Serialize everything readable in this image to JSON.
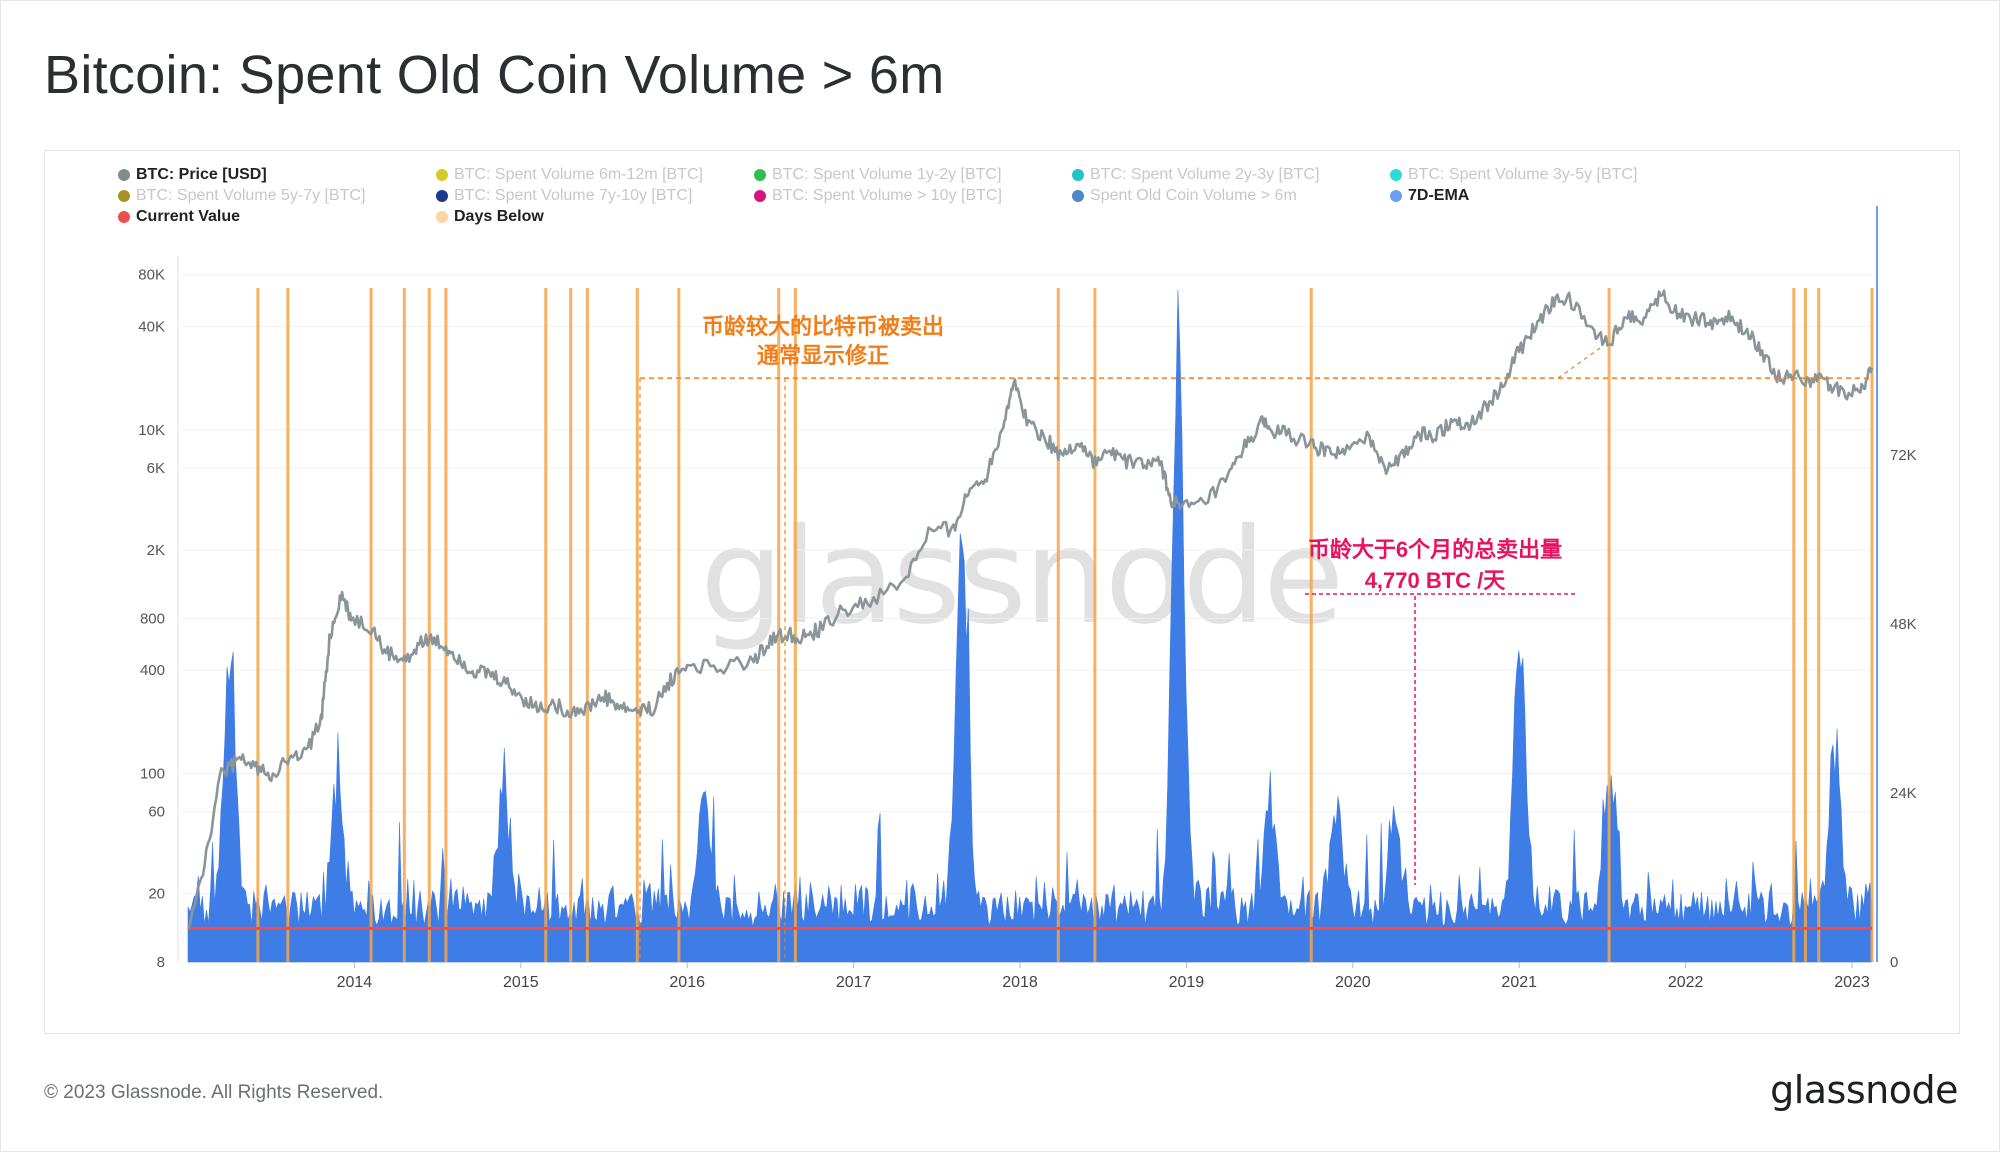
{
  "title": "Bitcoin: Spent Old Coin Volume > 6m",
  "footer": "© 2023 Glassnode. All Rights Reserved.",
  "brand": "glassnode",
  "watermark": "glassnode",
  "legend": [
    {
      "label": "BTC: Price [USD]",
      "color": "#7f8c8d",
      "active": true
    },
    {
      "label": "BTC: Spent Volume 6m-12m [BTC]",
      "color": "#d4cb2a",
      "active": false
    },
    {
      "label": "BTC: Spent Volume 1y-2y [BTC]",
      "color": "#2fbf4a",
      "active": false
    },
    {
      "label": "BTC: Spent Volume 2y-3y [BTC]",
      "color": "#22c2c9",
      "active": false
    },
    {
      "label": "BTC: Spent Volume 3y-5y [BTC]",
      "color": "#2dd9d9",
      "active": false
    },
    {
      "label": "BTC: Spent Volume 5y-7y [BTC]",
      "color": "#a89226",
      "active": false
    },
    {
      "label": "BTC: Spent Volume 7y-10y [BTC]",
      "color": "#1a3a8f",
      "active": false
    },
    {
      "label": "BTC: Spent Volume > 10y [BTC]",
      "color": "#d4157a",
      "active": false
    },
    {
      "label": "Spent Old Coin Volume > 6m",
      "color": "#4f86c6",
      "active": false
    },
    {
      "label": "7D-EMA",
      "color": "#6d9cf0",
      "active": true
    },
    {
      "label": "Current Value",
      "color": "#f04d4d",
      "active": true
    },
    {
      "label": "Days Below",
      "color": "#ffd3a6",
      "active": true
    }
  ],
  "annotations": {
    "orange_line1": "币龄较大的比特币被卖出",
    "orange_line2": "通常显示修正",
    "pink_line1": "币龄大于6个月的总卖出量",
    "pink_line2": "4,770 BTC /天"
  },
  "colors": {
    "price": "#8a9599",
    "volume": "#3f7de6",
    "current_value": "#f04d4d",
    "days_below": "#f7a347",
    "annotation_orange": "#f07f1a",
    "annotation_pink": "#e8135f"
  },
  "chart_data": {
    "type": "line",
    "x_ticks": [
      "2014",
      "2015",
      "2016",
      "2017",
      "2018",
      "2019",
      "2020",
      "2021",
      "2022",
      "2023"
    ],
    "y_left_scale": "log",
    "y_left_ticks": [
      "80K",
      "40K",
      "10K",
      "6K",
      "2K",
      "800",
      "400",
      "100",
      "60",
      "20",
      "8"
    ],
    "y_left_values": [
      80000,
      40000,
      10000,
      6000,
      2000,
      800,
      400,
      100,
      60,
      20,
      8
    ],
    "y_right_ticks": [
      "72K",
      "48K",
      "24K",
      "0"
    ],
    "y_right_values": [
      72000,
      48000,
      24000,
      0
    ],
    "current_value": 4770,
    "price_series": {
      "name": "BTC: Price [USD]",
      "x": [
        2013.0,
        2013.1,
        2013.2,
        2013.3,
        2013.4,
        2013.5,
        2013.6,
        2013.7,
        2013.8,
        2013.85,
        2013.92,
        2013.98,
        2014.1,
        2014.2,
        2014.3,
        2014.4,
        2014.5,
        2014.6,
        2014.7,
        2014.8,
        2014.9,
        2015.0,
        2015.1,
        2015.2,
        2015.3,
        2015.4,
        2015.5,
        2015.6,
        2015.7,
        2015.8,
        2015.9,
        2016.0,
        2016.2,
        2016.4,
        2016.5,
        2016.6,
        2016.7,
        2016.8,
        2016.95,
        2017.1,
        2017.3,
        2017.45,
        2017.6,
        2017.7,
        2017.8,
        2017.9,
        2017.96,
        2018.05,
        2018.15,
        2018.25,
        2018.35,
        2018.45,
        2018.55,
        2018.65,
        2018.75,
        2018.85,
        2018.9,
        2018.96,
        2019.1,
        2019.25,
        2019.35,
        2019.45,
        2019.5,
        2019.6,
        2019.75,
        2019.85,
        2019.95,
        2020.1,
        2020.2,
        2020.3,
        2020.4,
        2020.5,
        2020.6,
        2020.7,
        2020.8,
        2020.9,
        2021.0,
        2021.1,
        2021.2,
        2021.3,
        2021.45,
        2021.55,
        2021.65,
        2021.75,
        2021.85,
        2021.95,
        2022.05,
        2022.15,
        2022.25,
        2022.35,
        2022.45,
        2022.55,
        2022.65,
        2022.75,
        2022.85,
        2022.95,
        2023.05,
        2023.12
      ],
      "y": [
        13,
        30,
        100,
        120,
        110,
        100,
        120,
        130,
        200,
        600,
        1100,
        800,
        700,
        500,
        450,
        600,
        580,
        500,
        400,
        380,
        340,
        280,
        240,
        250,
        230,
        240,
        280,
        240,
        230,
        240,
        350,
        430,
        420,
        450,
        600,
        640,
        620,
        700,
        900,
        1000,
        1300,
        2500,
        2700,
        4500,
        5500,
        11000,
        19000,
        11000,
        9000,
        7000,
        8500,
        6500,
        7500,
        6500,
        6400,
        6300,
        4000,
        3500,
        3700,
        5200,
        8000,
        11000,
        10000,
        9500,
        8000,
        7500,
        7200,
        9000,
        6000,
        7000,
        9500,
        9200,
        11500,
        10800,
        13500,
        18000,
        29000,
        40000,
        55000,
        58000,
        36000,
        33000,
        47000,
        44000,
        63000,
        48000,
        44000,
        42000,
        45000,
        38000,
        30000,
        20000,
        21000,
        19500,
        19000,
        16500,
        16800,
        23000
      ]
    },
    "volume_7d_ema_peaks": {
      "name": "7D-EMA",
      "x": [
        2013.25,
        2013.9,
        2014.9,
        2016.1,
        2017.65,
        2018.95,
        2019.5,
        2019.9,
        2020.25,
        2021.0,
        2021.55,
        2022.9
      ],
      "y": [
        44000,
        20000,
        19000,
        17000,
        63000,
        90000,
        18000,
        16000,
        14000,
        45000,
        20000,
        26000
      ]
    },
    "days_below_dates": [
      2013.42,
      2013.6,
      2014.1,
      2014.3,
      2014.45,
      2014.55,
      2015.15,
      2015.3,
      2015.4,
      2015.7,
      2015.95,
      2016.55,
      2016.65,
      2018.23,
      2018.45,
      2019.75,
      2021.54,
      2022.65,
      2022.72,
      2022.8,
      2023.12
    ],
    "annotation_reference_price": 20000
  }
}
